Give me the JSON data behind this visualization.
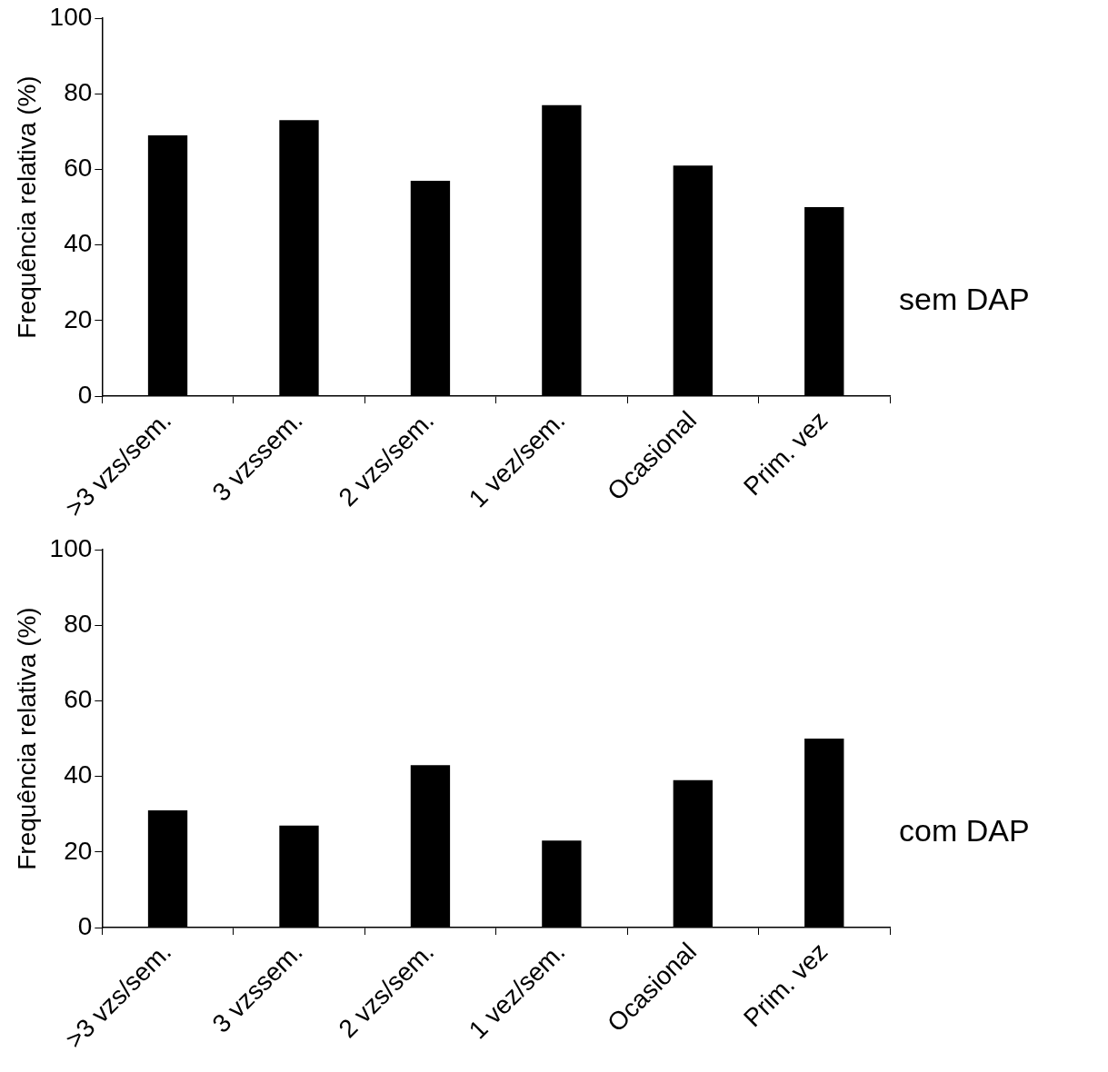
{
  "chart_data": [
    {
      "type": "bar",
      "ylabel": "Frequência relativa (%)",
      "categories": [
        ">3 vzs/sem.",
        "3 vzssem.",
        "2 vzs/sem.",
        "1 vez/sem.",
        "Ocasional",
        "Prim. vez"
      ],
      "values": [
        69,
        73,
        57,
        77,
        61,
        50
      ],
      "color": "#000000",
      "ylim": [
        0,
        100
      ],
      "yticks": [
        0,
        20,
        40,
        60,
        80,
        100
      ],
      "grid": false,
      "annotations": [
        "sem DAP"
      ]
    },
    {
      "type": "bar",
      "ylabel": "Frequência relativa (%)",
      "categories": [
        ">3 vzs/sem.",
        "3 vzssem.",
        "2 vzs/sem.",
        "1 vez/sem.",
        "Ocasional",
        "Prim. vez"
      ],
      "values": [
        31,
        27,
        43,
        23,
        39,
        50
      ],
      "color": "#000000",
      "ylim": [
        0,
        100
      ],
      "yticks": [
        0,
        20,
        40,
        60,
        80,
        100
      ],
      "grid": false,
      "annotations": [
        "com DAP"
      ]
    }
  ]
}
